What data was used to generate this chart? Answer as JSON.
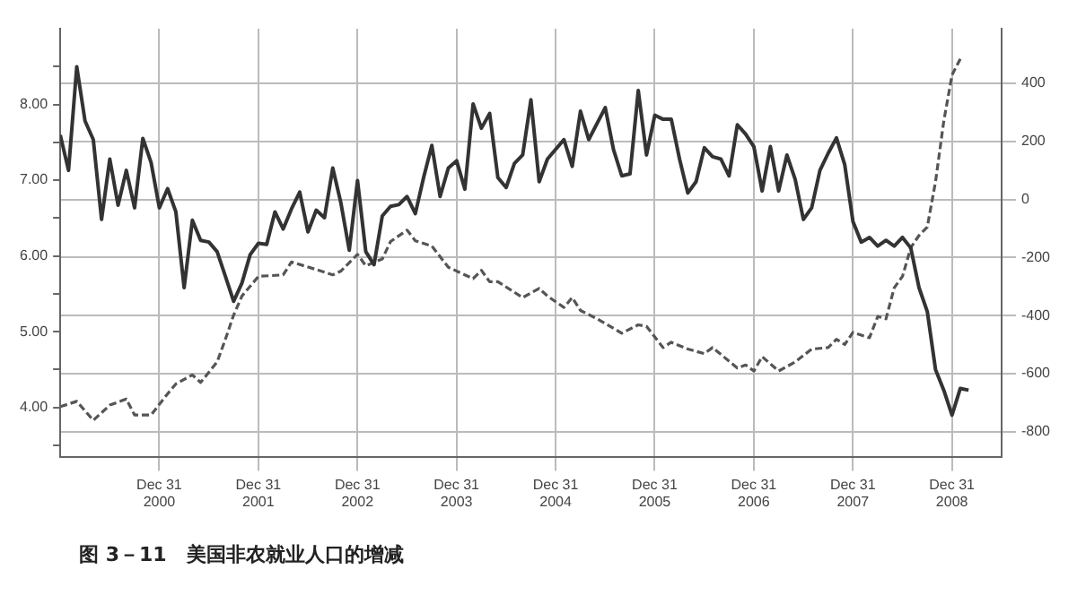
{
  "chart_data": {
    "type": "line",
    "title": "图 3－11　美国非农就业人口的增减",
    "marker": "none",
    "grid": true,
    "legend": false,
    "xlim": [
      "2000-01",
      "2009-07"
    ],
    "xticks": [
      {
        "value": "2000-12-31",
        "label": "Dec 31\n2000"
      },
      {
        "value": "2001-12-31",
        "label": "Dec 31\n2001"
      },
      {
        "value": "2002-12-31",
        "label": "Dec 31\n2002"
      },
      {
        "value": "2003-12-31",
        "label": "Dec 31\n2003"
      },
      {
        "value": "2004-12-31",
        "label": "Dec 31\n2004"
      },
      {
        "value": "2005-12-31",
        "label": "Dec 31\n2005"
      },
      {
        "value": "2006-12-31",
        "label": "Dec 31\n2006"
      },
      {
        "value": "2007-12-31",
        "label": "Dec 31\n2007"
      },
      {
        "value": "2008-12-31",
        "label": "Dec 31\n2008"
      }
    ],
    "ylim": [
      3.35,
      9.0
    ],
    "yticks": [
      {
        "value": 3.5,
        "label": null
      },
      {
        "value": 4,
        "label": "4.00"
      },
      {
        "value": 4.5,
        "label": null
      },
      {
        "value": 5,
        "label": "5.00"
      },
      {
        "value": 5.5,
        "label": null
      },
      {
        "value": 6,
        "label": "6.00"
      },
      {
        "value": 6.5,
        "label": null
      },
      {
        "value": 7,
        "label": "7.00"
      },
      {
        "value": 7.5,
        "label": null
      },
      {
        "value": 8,
        "label": "8.00"
      },
      {
        "value": 8.5,
        "label": null
      }
    ],
    "y2lim": [
      -886,
      588
    ],
    "y2ticks": [
      -800,
      -600,
      -400,
      -200,
      0,
      200,
      400
    ],
    "series": [
      {
        "color": "#333333",
        "axis": "y2",
        "line_style": "solid",
        "x": [
          "2000-01",
          "2000-02",
          "2000-03",
          "2000-04",
          "2000-05",
          "2000-06",
          "2000-07",
          "2000-08",
          "2000-09",
          "2000-10",
          "2000-11",
          "2000-12",
          "2001-01",
          "2001-02",
          "2001-03",
          "2001-04",
          "2001-05",
          "2001-06",
          "2001-07",
          "2001-08",
          "2001-09",
          "2001-10",
          "2001-11",
          "2001-12",
          "2002-01",
          "2002-02",
          "2002-03",
          "2002-04",
          "2002-05",
          "2002-06",
          "2002-07",
          "2002-08",
          "2002-09",
          "2002-10",
          "2002-11",
          "2002-12",
          "2003-01",
          "2003-02",
          "2003-03",
          "2003-04",
          "2003-05",
          "2003-06",
          "2003-07",
          "2003-08",
          "2003-09",
          "2003-10",
          "2003-11",
          "2003-12",
          "2004-01",
          "2004-02",
          "2004-03",
          "2004-04",
          "2004-05",
          "2004-06",
          "2004-07",
          "2004-08",
          "2004-09",
          "2004-10",
          "2004-11",
          "2004-12",
          "2005-02",
          "2005-03",
          "2005-04",
          "2005-05",
          "2005-07",
          "2005-08",
          "2005-09",
          "2005-10",
          "2005-11",
          "2005-12",
          "2006-01",
          "2006-02",
          "2006-03",
          "2006-04",
          "2006-05",
          "2006-06",
          "2006-07",
          "2006-08",
          "2006-09",
          "2006-10",
          "2006-11",
          "2006-12",
          "2007-01",
          "2007-02",
          "2007-03",
          "2007-04",
          "2007-05",
          "2007-06",
          "2007-07",
          "2007-08",
          "2007-09",
          "2007-10",
          "2007-11",
          "2007-12",
          "2008-01",
          "2008-02",
          "2008-03",
          "2008-04",
          "2008-05",
          "2008-06",
          "2008-07",
          "2008-08",
          "2008-09",
          "2008-10",
          "2008-11",
          "2008-12",
          "2009-01",
          "2009-02",
          "2009-03"
        ],
        "values": [
          222,
          100,
          457,
          270,
          206,
          -69,
          139,
          -20,
          100,
          -29,
          210,
          127,
          -29,
          37,
          -43,
          -304,
          -72,
          -141,
          -147,
          -180,
          -265,
          -351,
          -288,
          -190,
          -151,
          -155,
          -43,
          -102,
          -33,
          25,
          -112,
          -37,
          -63,
          108,
          -14,
          -175,
          65,
          -180,
          -225,
          -57,
          -24,
          -18,
          10,
          -49,
          75,
          186,
          10,
          108,
          133,
          35,
          329,
          245,
          296,
          75,
          41,
          124,
          153,
          343,
          61,
          139,
          206,
          114,
          304,
          206,
          316,
          172,
          81,
          88,
          375,
          153,
          290,
          276,
          276,
          139,
          22,
          61,
          178,
          147,
          139,
          81,
          257,
          225,
          182,
          29,
          182,
          29,
          153,
          69,
          -69,
          -29,
          100,
          159,
          212,
          120,
          -76,
          -147,
          -131,
          -161,
          -141,
          -161,
          -131,
          -167,
          -304,
          -386,
          -586,
          -657,
          -743,
          -651,
          -657
        ]
      },
      {
        "color": "#555555",
        "axis": "y",
        "line_style": "dashed",
        "x": [
          "2000-01",
          "2000-03",
          "2000-05",
          "2000-07",
          "2000-09",
          "2000-10",
          "2000-12",
          "2001-02",
          "2001-03",
          "2001-05",
          "2001-06",
          "2001-08",
          "2001-09",
          "2001-10",
          "2001-11",
          "2002-01",
          "2002-04",
          "2002-05",
          "2002-08",
          "2002-10",
          "2002-11",
          "2003-01",
          "2003-02",
          "2003-04",
          "2003-05",
          "2003-07",
          "2003-08",
          "2003-10",
          "2003-12",
          "2004-03",
          "2004-04",
          "2004-05",
          "2004-06",
          "2004-09",
          "2004-11",
          "2004-12",
          "2005-02",
          "2005-03",
          "2005-04",
          "2005-06",
          "2005-09",
          "2005-11",
          "2005-12",
          "2006-02",
          "2006-03",
          "2006-05",
          "2006-07",
          "2006-08",
          "2006-11",
          "2006-12",
          "2007-01",
          "2007-02",
          "2007-04",
          "2007-06",
          "2007-08",
          "2007-10",
          "2007-11",
          "2007-12",
          "2008-01",
          "2008-03",
          "2008-04",
          "2008-05",
          "2008-06",
          "2008-07",
          "2008-08",
          "2008-09",
          "2008-10",
          "2008-11",
          "2008-12",
          "2009-01",
          "2009-02"
        ],
        "values": [
          4.01,
          4.08,
          3.83,
          4.03,
          4.11,
          3.9,
          3.9,
          4.18,
          4.31,
          4.43,
          4.33,
          4.6,
          4.9,
          5.22,
          5.47,
          5.73,
          5.75,
          5.92,
          5.82,
          5.75,
          5.8,
          6.02,
          5.87,
          5.96,
          6.19,
          6.34,
          6.2,
          6.13,
          5.85,
          5.7,
          5.81,
          5.66,
          5.66,
          5.45,
          5.57,
          5.47,
          5.32,
          5.45,
          5.28,
          5.17,
          4.98,
          5.09,
          5.07,
          4.79,
          4.86,
          4.77,
          4.71,
          4.79,
          4.52,
          4.56,
          4.48,
          4.67,
          4.48,
          4.6,
          4.77,
          4.79,
          4.9,
          4.83,
          4.99,
          4.92,
          5.2,
          5.17,
          5.58,
          5.73,
          6.11,
          6.27,
          6.38,
          6.98,
          7.78,
          8.39,
          8.6
        ]
      }
    ]
  }
}
